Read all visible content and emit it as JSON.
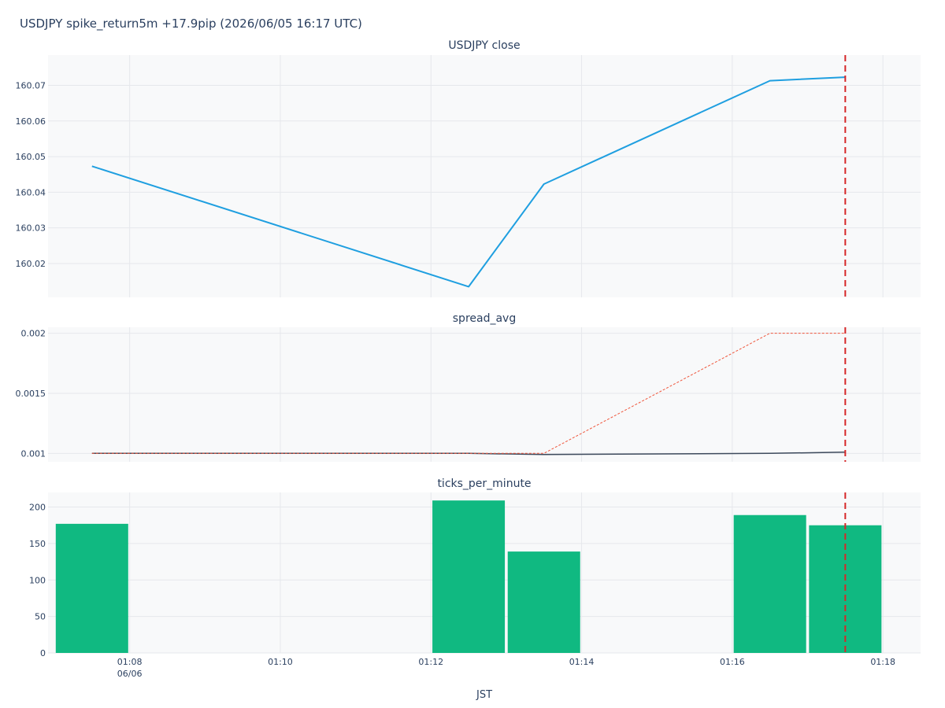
{
  "figure": {
    "title": "USDJPY spike_return5m +17.9pip (2026/06/05 16:17 UTC)",
    "xlabel": "JST"
  },
  "colors": {
    "close_line": "#1f9fe0",
    "spread_line": "#3d4a5c",
    "spread_max_line": "#ef553b",
    "bars": "#10b981",
    "event_line": "#d62728",
    "plot_bg": "#f8f9fa",
    "grid": "#e6e8ec",
    "text": "#2a3f5f"
  },
  "chart_data": [
    {
      "type": "line",
      "title": "USDJPY close",
      "xlim_minutes": [
        "01:06:55",
        "01:18:30"
      ],
      "ylim": [
        160.0105,
        160.0785
      ],
      "yticks": [
        160.02,
        160.03,
        160.04,
        160.05,
        160.06,
        160.07
      ],
      "ytick_labels": [
        "160.02",
        "160.03",
        "160.04",
        "160.05",
        "160.06",
        "160.07"
      ],
      "grid": true,
      "series": [
        {
          "x": [
            "01:07:30",
            "01:12:30",
            "01:13:30",
            "01:16:30",
            "01:17:30"
          ],
          "values": [
            160.0473,
            160.0135,
            160.0423,
            160.0713,
            160.0723
          ]
        }
      ]
    },
    {
      "type": "line",
      "title": "spread_avg",
      "xlim_minutes": [
        "01:06:55",
        "01:18:30"
      ],
      "ylim": [
        0.00093,
        0.00205
      ],
      "yticks": [
        0.001,
        0.0015,
        0.002
      ],
      "ytick_labels": [
        "0.001",
        "0.0015",
        "0.002"
      ],
      "grid": true,
      "series": [
        {
          "x": [
            "01:07:30",
            "01:12:30",
            "01:13:30",
            "01:16:30",
            "01:17:30"
          ],
          "values": [
            0.001,
            0.001,
            0.00099,
            0.001,
            0.00101
          ],
          "style": "solid"
        },
        {
          "x": [
            "01:07:30",
            "01:12:30",
            "01:13:30",
            "01:16:30",
            "01:17:30"
          ],
          "values": [
            0.001,
            0.001,
            0.001,
            0.002,
            0.002
          ],
          "style": "dotted"
        }
      ]
    },
    {
      "type": "bar",
      "title": "ticks_per_minute",
      "xlim_minutes": [
        "01:06:55",
        "01:18:30"
      ],
      "ylim": [
        0,
        220
      ],
      "yticks": [
        0,
        50,
        100,
        150,
        200
      ],
      "ytick_labels": [
        "0",
        "50",
        "100",
        "150",
        "200"
      ],
      "grid": true,
      "series": [
        {
          "x": [
            "01:07:30",
            "01:12:30",
            "01:13:30",
            "01:16:30",
            "01:17:30"
          ],
          "values": [
            177,
            209,
            139,
            189,
            175
          ]
        }
      ]
    }
  ],
  "x_axis": {
    "ticks": [
      "01:08",
      "01:10",
      "01:12",
      "01:14",
      "01:16",
      "01:18"
    ],
    "tick_labels": [
      "01:08",
      "01:10",
      "01:12",
      "01:14",
      "01:16",
      "01:18"
    ],
    "date_label": "06/06"
  },
  "event_marker": {
    "x": "01:17:30",
    "style": "dashed"
  }
}
